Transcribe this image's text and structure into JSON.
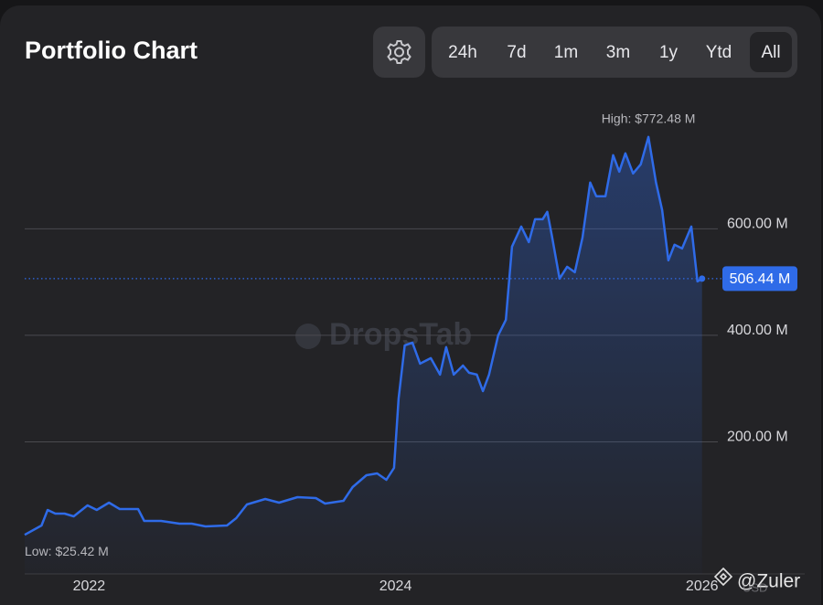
{
  "header": {
    "ranges": [
      "24h",
      "7d",
      "1m",
      "3m",
      "1y",
      "Ytd",
      "All"
    ],
    "active_range": "All"
  },
  "watermarks": [
    "DropsTab",
    "@Zuler",
    "USD"
  ],
  "chart_data": {
    "type": "area",
    "title": "Portfolio Chart",
    "color": "#2f6be8",
    "x": [
      2021.58,
      2021.69,
      2021.73,
      2021.78,
      2021.84,
      2021.9,
      2021.99,
      2022.05,
      2022.13,
      2022.2,
      2022.32,
      2022.36,
      2022.47,
      2022.59,
      2022.67,
      2022.76,
      2022.9,
      2022.96,
      2023.03,
      2023.15,
      2023.24,
      2023.36,
      2023.48,
      2023.54,
      2023.66,
      2023.72,
      2023.81,
      2023.88,
      2023.94,
      2023.99,
      2024.02,
      2024.06,
      2024.11,
      2024.16,
      2024.23,
      2024.29,
      2024.33,
      2024.38,
      2024.44,
      2024.48,
      2024.53,
      2024.57,
      2024.61,
      2024.67,
      2024.72,
      2024.76,
      2024.82,
      2024.87,
      2024.91,
      2024.96,
      2024.99,
      2025.02,
      2025.07,
      2025.12,
      2025.17,
      2025.22,
      2025.27,
      2025.31,
      2025.37,
      2025.42,
      2025.46,
      2025.5,
      2025.55,
      2025.6,
      2025.65,
      2025.7,
      2025.74,
      2025.78,
      2025.82,
      2025.87,
      2025.93,
      2025.97,
      2026.0
    ],
    "values": [
      25.42,
      42.9,
      72.1,
      65.2,
      65.2,
      60.1,
      80.7,
      72.1,
      85.8,
      73.8,
      73.8,
      51.5,
      51.5,
      46.4,
      46.4,
      41.2,
      42.9,
      56.7,
      82.4,
      92.7,
      85.8,
      96.1,
      94.4,
      84.1,
      89.3,
      115.0,
      137.3,
      140.8,
      128.8,
      151.1,
      281.5,
      381.1,
      386.3,
      346.8,
      357.1,
      326.2,
      377.7,
      326.2,
      343.3,
      329.6,
      326.2,
      295.3,
      326.2,
      400.0,
      429.2,
      566.5,
      604.3,
      575.1,
      618.0,
      618.0,
      631.8,
      587.1,
      506.4,
      528.8,
      518.5,
      583.7,
      686.7,
      661.0,
      661.0,
      738.2,
      707.3,
      741.6,
      703.9,
      721.0,
      772.48,
      686.7,
      635.2,
      540.8,
      570.0,
      563.1,
      604.3,
      501.3,
      506.44
    ],
    "xlim": [
      2021.58,
      2026.67
    ],
    "xticks": [
      2022,
      2024,
      2026
    ],
    "ylim": [
      -48,
      858
    ],
    "yticks": [
      {
        "value": 200,
        "label": "200.00 M"
      },
      {
        "value": 400,
        "label": "400.00 M"
      },
      {
        "value": 600,
        "label": "600.00 M"
      }
    ],
    "grid": true,
    "annotations": [
      {
        "value": 772.48,
        "label": "High: $772.48 M"
      },
      {
        "value": 25.42,
        "label": "Low: $25.42 M"
      },
      {
        "value": 506.44,
        "label": "506.44 M"
      }
    ]
  }
}
